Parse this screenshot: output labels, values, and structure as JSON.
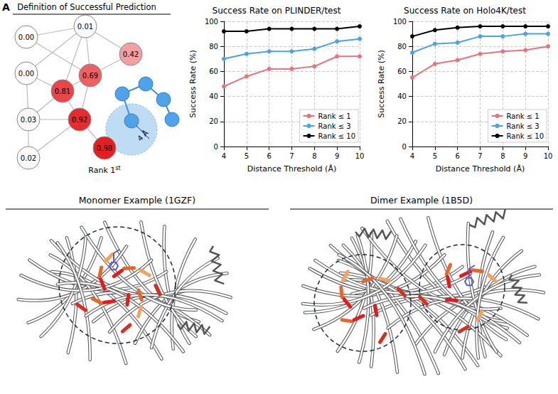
{
  "panel_letter": "A",
  "diagram": {
    "title": "Definition of Successful Prediction",
    "nodes": [
      {
        "score": 0.0
      },
      {
        "score": 0.01
      },
      {
        "score": 0.42
      },
      {
        "score": 0.69
      },
      {
        "score": 0.0
      },
      {
        "score": 0.81
      },
      {
        "score": 0.03
      },
      {
        "score": 0.92
      },
      {
        "score": 0.98
      },
      {
        "score": 0.02
      }
    ],
    "radius_label": "4 Å",
    "rank_label": "Rank 1st"
  },
  "chart_data": [
    {
      "type": "line",
      "title": "Success Rate on PLINDER/test",
      "x_label": "Distance Threshold (Å)",
      "y_label": "Success Rate (%)",
      "x": [
        4,
        5,
        6,
        7,
        8,
        9,
        10
      ],
      "xlim": [
        4,
        10
      ],
      "xticks": [
        4,
        5,
        6,
        7,
        8,
        9,
        10
      ],
      "ylim": [
        0,
        100
      ],
      "yticks": [
        0,
        20,
        40,
        60,
        80,
        100
      ],
      "grid": true,
      "legend": "lower right",
      "marker": "circle",
      "series": [
        {
          "name": "Rank ≤ 1",
          "color": "#e8737a",
          "values": [
            48,
            56,
            62,
            62,
            64,
            72,
            72
          ]
        },
        {
          "name": "Rank ≤ 3",
          "color": "#4aa3e6",
          "values": [
            70,
            74,
            76,
            76,
            78,
            84,
            86
          ]
        },
        {
          "name": "Rank ≤ 10",
          "color": "#000000",
          "values": [
            92,
            92,
            94,
            94,
            94,
            94,
            96
          ]
        }
      ]
    },
    {
      "type": "line",
      "title": "Success Rate on Holo4K/test",
      "x_label": "Distance Threshold (Å)",
      "y_label": "Success Rate (%)",
      "x": [
        4,
        5,
        6,
        7,
        8,
        9,
        10
      ],
      "xlim": [
        4,
        10
      ],
      "xticks": [
        4,
        5,
        6,
        7,
        8,
        9,
        10
      ],
      "ylim": [
        0,
        100
      ],
      "yticks": [
        0,
        20,
        40,
        60,
        80,
        100
      ],
      "grid": true,
      "legend": "lower right",
      "marker": "circle",
      "series": [
        {
          "name": "Rank ≤ 1",
          "color": "#e8737a",
          "values": [
            55,
            66,
            69,
            74,
            76,
            77,
            80
          ]
        },
        {
          "name": "Rank ≤ 3",
          "color": "#4aa3e6",
          "values": [
            75,
            82,
            83,
            88,
            88,
            90,
            90
          ]
        },
        {
          "name": "Rank ≤ 10",
          "color": "#000000",
          "values": [
            88,
            93,
            95,
            96,
            96,
            96,
            96
          ]
        }
      ]
    }
  ],
  "structures": [
    {
      "title": "Monomer Example (1GZF)"
    },
    {
      "title": "Dimer Example (1B5D)"
    }
  ]
}
